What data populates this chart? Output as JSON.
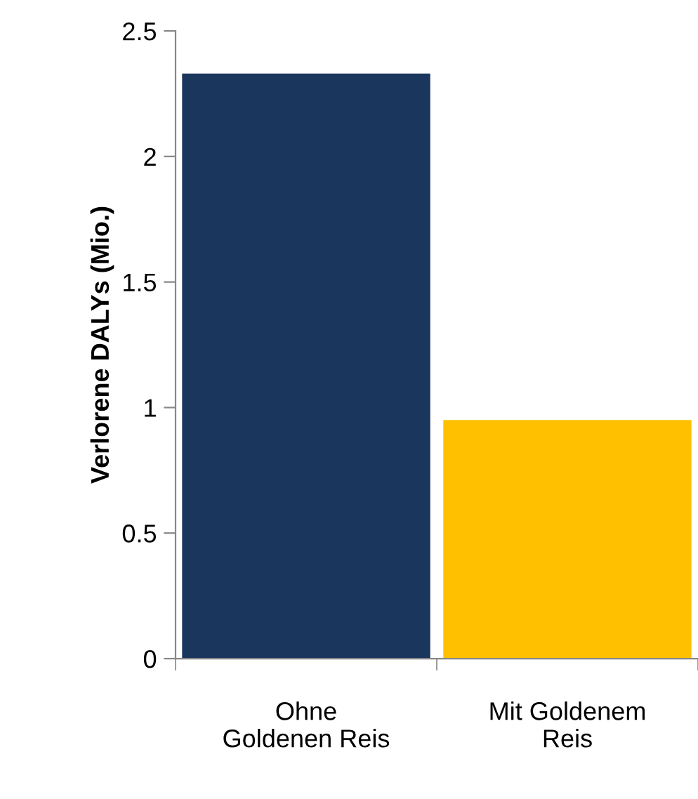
{
  "chart_data": {
    "type": "bar",
    "ylabel": "Verlorene DALYs (Mio.)",
    "categories": [
      "Ohne\nGoldenen Reis",
      "Mit Goldenem\nReis"
    ],
    "values": [
      2.33,
      0.95
    ],
    "colors": [
      "#1b365d",
      "#ffc000"
    ],
    "ylim": [
      0,
      2.5
    ],
    "yticks": [
      0,
      0.5,
      1,
      1.5,
      2,
      2.5
    ],
    "grid": false,
    "legend": false
  }
}
